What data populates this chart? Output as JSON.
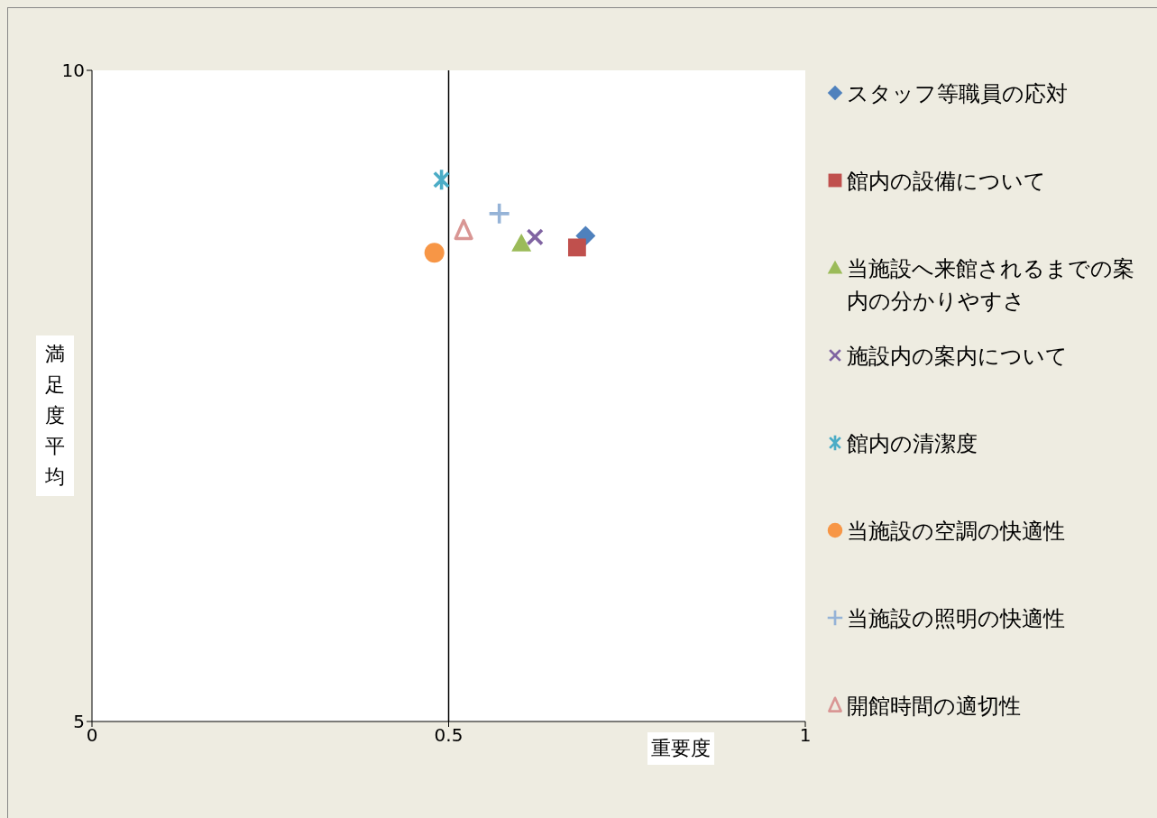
{
  "chart_data": {
    "type": "scatter",
    "xlabel": "重要度",
    "ylabel": "満足度平均",
    "xlim": [
      0,
      1
    ],
    "xticks": [
      0,
      0.5,
      1
    ],
    "ylim": [
      5,
      10
    ],
    "yticks": [
      5,
      10
    ],
    "grid": false,
    "legend": "right",
    "ref_lines": [
      {
        "axis": "x",
        "value": 0.5,
        "color": "#000000"
      }
    ],
    "series": [
      {
        "name": "スタッフ等職員の応対",
        "color": "#4f81bd",
        "marker": "diamond",
        "x": [
          0.692
        ],
        "values": [
          8.73
        ]
      },
      {
        "name": "館内の設備について",
        "color": "#c0504d",
        "marker": "square",
        "x": [
          0.68
        ],
        "values": [
          8.64
        ]
      },
      {
        "name": "当施設へ来館されるまでの案内の分かりやすさ",
        "color": "#9bbb59",
        "marker": "triangle",
        "x": [
          0.602
        ],
        "values": [
          8.67
        ]
      },
      {
        "name": "施設内の案内について",
        "color": "#8064a2",
        "marker": "x",
        "x": [
          0.621
        ],
        "values": [
          8.72
        ]
      },
      {
        "name": "館内の清潔度",
        "color": "#4bacc6",
        "marker": "star",
        "x": [
          0.49
        ],
        "values": [
          9.16
        ]
      },
      {
        "name": "当施設の空調の快適性",
        "color": "#f79646",
        "marker": "circle",
        "x": [
          0.48
        ],
        "values": [
          8.6
        ]
      },
      {
        "name": "当施設の照明の快適性",
        "color": "#95b3d7",
        "marker": "cross",
        "x": [
          0.571
        ],
        "values": [
          8.9
        ]
      },
      {
        "name": "開館時間の適切性",
        "color": "#d99694",
        "marker": "triangle-open",
        "x": [
          0.521
        ],
        "values": [
          8.77
        ]
      }
    ]
  }
}
